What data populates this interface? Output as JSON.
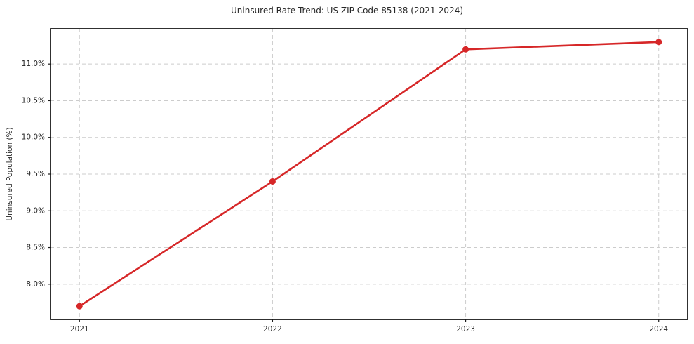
{
  "title": "Uninsured Rate Trend: US ZIP Code 85138 (2021-2024)",
  "chart_data": {
    "type": "line",
    "title": "Uninsured Rate Trend: US ZIP Code 85138 (2021-2024)",
    "xlabel": "",
    "ylabel": "Uninsured Population (%)",
    "x": [
      2021,
      2022,
      2023,
      2024
    ],
    "x_tick_labels": [
      "2021",
      "2022",
      "2023",
      "2024"
    ],
    "values": [
      7.7,
      9.4,
      11.2,
      11.3
    ],
    "y_ticks": [
      8.0,
      8.5,
      9.0,
      9.5,
      10.0,
      10.5,
      11.0
    ],
    "y_tick_labels": [
      "8.0%",
      "8.5%",
      "9.0%",
      "9.5%",
      "10.0%",
      "10.5%",
      "11.0%"
    ],
    "xlim": [
      2020.85,
      2024.15
    ],
    "ylim": [
      7.52,
      11.48
    ],
    "grid": true,
    "grid_style": "dashed",
    "legend": false,
    "colors": {
      "line": "#d62728",
      "marker": "#d62728",
      "grid": "#cccccc",
      "spine": "#1a1a1a",
      "tick_text": "#262626",
      "background": "#ffffff"
    }
  }
}
